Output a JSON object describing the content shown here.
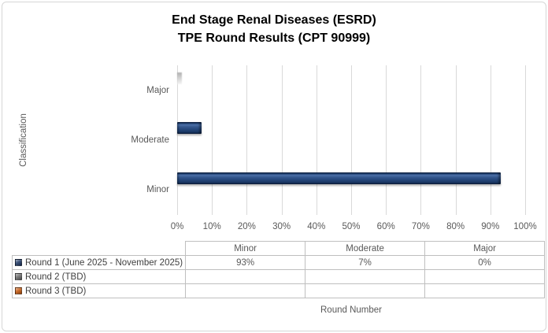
{
  "chart": {
    "title_line1": "End Stage Renal Diseases (ESRD)",
    "title_line2": "TPE Round Results (CPT 90999)",
    "y_axis_title": "Classification",
    "x_axis_title": "Round Number"
  },
  "chart_data": {
    "type": "bar",
    "orientation": "horizontal",
    "title": "End Stage Renal Diseases (ESRD) TPE Round Results (CPT 90999)",
    "xlabel": "Round Number",
    "ylabel": "Classification",
    "xlim": [
      0,
      100
    ],
    "grid": true,
    "x_tick_labels": [
      "0%",
      "10%",
      "20%",
      "30%",
      "40%",
      "50%",
      "60%",
      "70%",
      "80%",
      "90%",
      "100%"
    ],
    "categories_top_to_bottom": [
      "Major",
      "Moderate",
      "Minor"
    ],
    "series": [
      {
        "name": "Round 1 (June 2025 - November 2025)",
        "color": "#1F3864",
        "values": {
          "Minor": 93,
          "Moderate": 7,
          "Major": 0
        }
      },
      {
        "name": "Round 2 (TBD)",
        "color": "#6B6B6B",
        "values": {
          "Minor": null,
          "Moderate": null,
          "Major": null
        }
      },
      {
        "name": "Round 3 (TBD)",
        "color": "#C55A11",
        "values": {
          "Minor": null,
          "Moderate": null,
          "Major": null
        }
      }
    ],
    "legend_position": "table-bottom"
  },
  "table": {
    "headers": [
      "",
      "Minor",
      "Moderate",
      "Major"
    ],
    "rows": [
      {
        "key_color": "#1F3864",
        "label": "Round 1 (June 2025 - November 2025)",
        "values": [
          "93%",
          "7%",
          "0%"
        ]
      },
      {
        "key_color": "#6B6B6B",
        "label": "Round 2 (TBD)",
        "values": [
          "",
          "",
          ""
        ]
      },
      {
        "key_color": "#C55A11",
        "label": "Round 3 (TBD)",
        "values": [
          "",
          "",
          ""
        ]
      }
    ]
  },
  "colors": {
    "bar_fill": "#1F3864",
    "gridline": "#D9D9D9",
    "axis_text": "#595959",
    "table_border": "#BFBFBF",
    "legend_text": "#404040",
    "title_text": "#000000"
  }
}
